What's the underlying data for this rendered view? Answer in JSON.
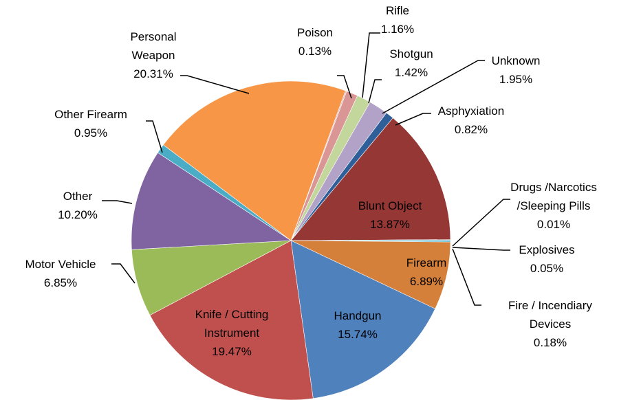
{
  "chart_data": {
    "type": "pie",
    "categories": [
      "Poison",
      "Rifle",
      "Shotgun",
      "Unknown",
      "Asphyxiation",
      "Blunt Object",
      "Drugs /Narcotics /Sleeping Pills",
      "Explosives",
      "Fire / Incendiary Devices",
      "Firearm",
      "Handgun",
      "Knife / Cutting Instrument",
      "Motor Vehicle",
      "Other",
      "Other Firearm",
      "Personal Weapon"
    ],
    "values": [
      0.13,
      1.16,
      1.42,
      1.95,
      0.82,
      13.87,
      0.01,
      0.05,
      0.18,
      6.89,
      15.74,
      19.47,
      6.85,
      10.2,
      0.95,
      20.31
    ],
    "value_labels": [
      "0.13%",
      "1.16%",
      "1.42%",
      "1.95%",
      "0.82%",
      "13.87%",
      "0.01%",
      "0.05%",
      "0.18%",
      "6.89%",
      "15.74%",
      "19.47%",
      "6.85%",
      "10.20%",
      "0.95%",
      "20.31%"
    ],
    "colors": [
      "#e6b9b8",
      "#d99694",
      "#c3d69b",
      "#b3a2c7",
      "#2f5f98",
      "#953735",
      "#4bacc6",
      "#4bacc6",
      "#4bacc6",
      "#d4803a",
      "#4f81bd",
      "#c0504d",
      "#9bbb59",
      "#8064a2",
      "#4bacc6",
      "#f79646"
    ]
  }
}
